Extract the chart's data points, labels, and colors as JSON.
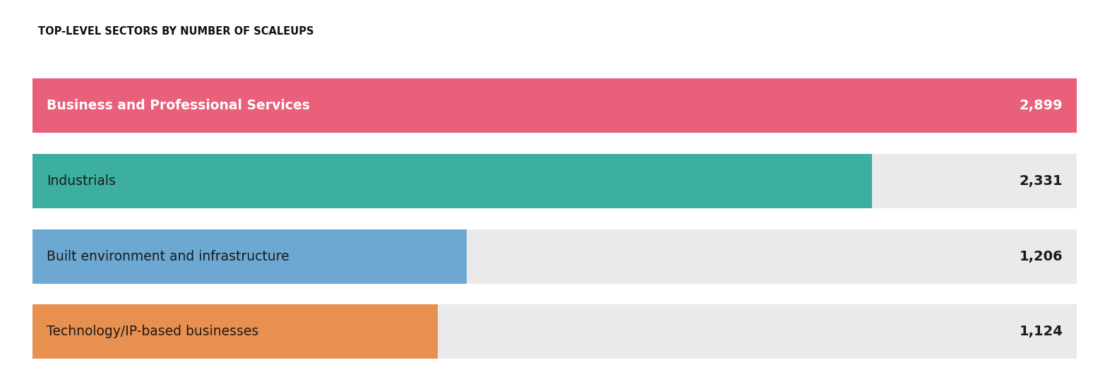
{
  "title": "TOP-LEVEL SECTORS BY NUMBER OF SCALEUPS",
  "categories": [
    "Business and Professional Services",
    "Industrials",
    "Built environment and infrastructure",
    "Technology/IP-based businesses"
  ],
  "values": [
    2899,
    2331,
    1206,
    1124
  ],
  "max_value": 2899,
  "bar_colors": [
    "#E8607A",
    "#3DAFA0",
    "#6CA8D2",
    "#E89050"
  ],
  "label_colors_bold": [
    true,
    false,
    false,
    false
  ],
  "label_text_colors": [
    "#ffffff",
    "#1a1a1a",
    "#1a1a1a",
    "#1a1a1a"
  ],
  "value_text_colors": [
    "#ffffff",
    "#1a1a1a",
    "#1a1a1a",
    "#1a1a1a"
  ],
  "background_color": "#ffffff",
  "bar_bg_color": "#EAEAEA",
  "title_fontsize": 10.5,
  "label_fontsize": 13.5,
  "value_fontsize": 14,
  "figure_width": 15.48,
  "figure_height": 5.34,
  "dpi": 100
}
